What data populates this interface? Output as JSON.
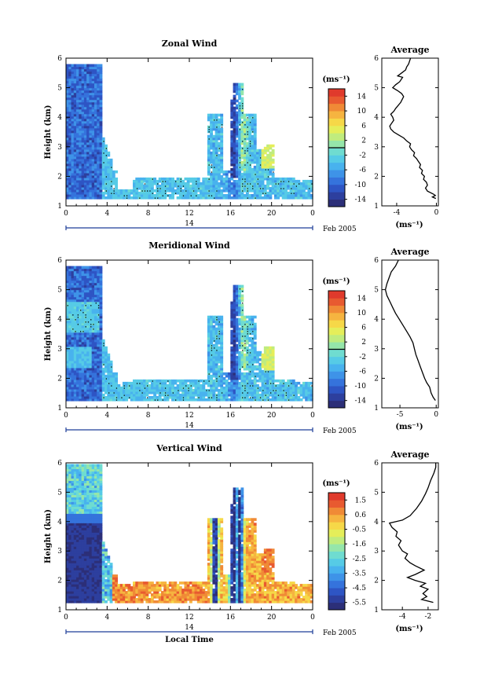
{
  "figure": {
    "date_label": "Feb 2005",
    "day_label": "14",
    "x_axis_label": "Local Time"
  },
  "colors": {
    "scale": [
      "#2c2f78",
      "#2d3f9e",
      "#2e55c4",
      "#3573dc",
      "#3e93e8",
      "#48b2ee",
      "#56cbe6",
      "#6fdcd0",
      "#95e6aa",
      "#c0ec7e",
      "#e5ee5a",
      "#f6d848",
      "#f6b440",
      "#f08a36",
      "#e85a30",
      "#e03a2c"
    ],
    "contour": "#000000",
    "frame": "#000000",
    "date_bar": "#1f3f99"
  },
  "chart_data": [
    {
      "type": "heatmap",
      "title": "Zonal Wind",
      "ylabel": "Height (km)",
      "x_ticks": [
        "0",
        "4",
        "8",
        "12",
        "16",
        "20",
        "0"
      ],
      "y_ticks": [
        "1",
        "2",
        "3",
        "4",
        "5",
        "6"
      ],
      "xlim": [
        0,
        24
      ],
      "ylim": [
        1,
        6
      ],
      "colorbar": {
        "unit": "(ms⁻¹)",
        "min": -16,
        "max": 16,
        "mid_line": 0,
        "ticks": [
          "14",
          "10",
          "6",
          "2",
          "-2",
          "-6",
          "-10",
          "-14"
        ]
      },
      "average": {
        "title": "Average",
        "xlabel": "(ms⁻¹)",
        "x_ticks": [
          "-4",
          "0"
        ],
        "xlim": [
          -5.5,
          0.2
        ],
        "y_ticks": [
          "1",
          "2",
          "3",
          "4",
          "5",
          "6"
        ],
        "ylim": [
          1,
          6
        ],
        "profile": [
          [
            1.25,
            -0.05
          ],
          [
            1.3,
            -0.4
          ],
          [
            1.35,
            -0.1
          ],
          [
            1.4,
            -0.3
          ],
          [
            1.5,
            -0.9
          ],
          [
            1.6,
            -1.1
          ],
          [
            1.7,
            -0.9
          ],
          [
            1.8,
            -1.0
          ],
          [
            1.9,
            -1.3
          ],
          [
            2.0,
            -1.2
          ],
          [
            2.1,
            -1.5
          ],
          [
            2.2,
            -1.4
          ],
          [
            2.3,
            -1.7
          ],
          [
            2.4,
            -1.6
          ],
          [
            2.5,
            -1.8
          ],
          [
            2.6,
            -2.0
          ],
          [
            2.7,
            -2.3
          ],
          [
            2.8,
            -2.2
          ],
          [
            2.9,
            -2.5
          ],
          [
            3.0,
            -2.7
          ],
          [
            3.1,
            -2.6
          ],
          [
            3.2,
            -3.0
          ],
          [
            3.3,
            -3.3
          ],
          [
            3.4,
            -3.8
          ],
          [
            3.5,
            -4.3
          ],
          [
            3.6,
            -4.6
          ],
          [
            3.7,
            -4.7
          ],
          [
            3.8,
            -4.5
          ],
          [
            3.9,
            -4.3
          ],
          [
            4.0,
            -4.4
          ],
          [
            4.1,
            -4.6
          ],
          [
            4.2,
            -4.3
          ],
          [
            4.3,
            -4.1
          ],
          [
            4.5,
            -3.6
          ],
          [
            4.7,
            -3.3
          ],
          [
            4.8,
            -3.5
          ],
          [
            4.9,
            -3.9
          ],
          [
            5.0,
            -4.4
          ],
          [
            5.1,
            -4.1
          ],
          [
            5.2,
            -3.7
          ],
          [
            5.35,
            -3.4
          ],
          [
            5.4,
            -3.9
          ],
          [
            5.5,
            -3.5
          ],
          [
            5.6,
            -3.1
          ],
          [
            5.7,
            -3.0
          ],
          [
            5.8,
            -2.8
          ],
          [
            6.0,
            -2.6
          ]
        ]
      }
    },
    {
      "type": "heatmap",
      "title": "Meridional Wind",
      "ylabel": "Height (km)",
      "x_ticks": [
        "0",
        "4",
        "8",
        "12",
        "16",
        "20",
        "0"
      ],
      "y_ticks": [
        "1",
        "2",
        "3",
        "4",
        "5",
        "6"
      ],
      "xlim": [
        0,
        24
      ],
      "ylim": [
        1,
        6
      ],
      "colorbar": {
        "unit": "(ms⁻¹)",
        "min": -16,
        "max": 16,
        "mid_line": 0,
        "ticks": [
          "14",
          "10",
          "6",
          "2",
          "-2",
          "-6",
          "-10",
          "-14"
        ]
      },
      "average": {
        "title": "Average",
        "xlabel": "(ms⁻¹)",
        "x_ticks": [
          "-5",
          "0"
        ],
        "xlim": [
          -7.5,
          0.3
        ],
        "y_ticks": [
          "1",
          "2",
          "3",
          "4",
          "5",
          "6"
        ],
        "ylim": [
          1,
          6
        ],
        "profile": [
          [
            1.25,
            -0.1
          ],
          [
            1.35,
            -0.4
          ],
          [
            1.5,
            -0.7
          ],
          [
            1.7,
            -0.9
          ],
          [
            1.85,
            -1.3
          ],
          [
            2.0,
            -1.6
          ],
          [
            2.2,
            -1.9
          ],
          [
            2.4,
            -2.2
          ],
          [
            2.6,
            -2.5
          ],
          [
            2.8,
            -2.8
          ],
          [
            3.0,
            -3.0
          ],
          [
            3.2,
            -3.2
          ],
          [
            3.4,
            -3.6
          ],
          [
            3.6,
            -4.1
          ],
          [
            3.8,
            -4.6
          ],
          [
            4.0,
            -5.1
          ],
          [
            4.2,
            -5.6
          ],
          [
            4.4,
            -6.0
          ],
          [
            4.6,
            -6.4
          ],
          [
            4.8,
            -6.8
          ],
          [
            5.0,
            -7.0
          ],
          [
            5.2,
            -6.8
          ],
          [
            5.4,
            -6.5
          ],
          [
            5.6,
            -6.2
          ],
          [
            5.8,
            -5.6
          ],
          [
            6.0,
            -5.2
          ]
        ]
      }
    },
    {
      "type": "heatmap",
      "title": "Vertical Wind",
      "ylabel": "Height (km)",
      "x_ticks": [
        "0",
        "4",
        "8",
        "12",
        "16",
        "20",
        "0"
      ],
      "y_ticks": [
        "1",
        "2",
        "3",
        "4",
        "5",
        "6"
      ],
      "xlim": [
        0,
        24
      ],
      "ylim": [
        1,
        6
      ],
      "colorbar": {
        "unit": "(ms⁻¹)",
        "min": -6.0,
        "max": 2.0,
        "mid_line": null,
        "ticks": [
          "1.5",
          "0.6",
          "-0.5",
          "-1.6",
          "-2.5",
          "-3.5",
          "-4.5",
          "-5.5"
        ]
      },
      "average": {
        "title": "Average",
        "xlabel": "(ms⁻¹)",
        "x_ticks": [
          "-4",
          "-2"
        ],
        "xlim": [
          -5.6,
          -1.2
        ],
        "y_ticks": [
          "1",
          "2",
          "3",
          "4",
          "5",
          "6"
        ],
        "ylim": [
          1,
          6
        ],
        "profile": [
          [
            1.25,
            -1.6
          ],
          [
            1.35,
            -2.5
          ],
          [
            1.45,
            -2.1
          ],
          [
            1.55,
            -2.4
          ],
          [
            1.7,
            -2.0
          ],
          [
            1.8,
            -2.6
          ],
          [
            1.9,
            -2.2
          ],
          [
            2.0,
            -3.0
          ],
          [
            2.1,
            -3.6
          ],
          [
            2.2,
            -3.0
          ],
          [
            2.35,
            -2.3
          ],
          [
            2.5,
            -3.0
          ],
          [
            2.6,
            -3.4
          ],
          [
            2.75,
            -3.8
          ],
          [
            2.9,
            -3.6
          ],
          [
            3.0,
            -4.0
          ],
          [
            3.2,
            -4.3
          ],
          [
            3.35,
            -4.1
          ],
          [
            3.5,
            -4.5
          ],
          [
            3.65,
            -4.4
          ],
          [
            3.8,
            -4.8
          ],
          [
            3.95,
            -5.0
          ],
          [
            4.05,
            -4.0
          ],
          [
            4.2,
            -3.4
          ],
          [
            4.45,
            -2.9
          ],
          [
            4.7,
            -2.5
          ],
          [
            4.95,
            -2.2
          ],
          [
            5.15,
            -2.0
          ],
          [
            5.4,
            -1.8
          ],
          [
            5.65,
            -1.55
          ],
          [
            5.85,
            -1.4
          ],
          [
            6.0,
            -1.4
          ]
        ]
      }
    }
  ]
}
